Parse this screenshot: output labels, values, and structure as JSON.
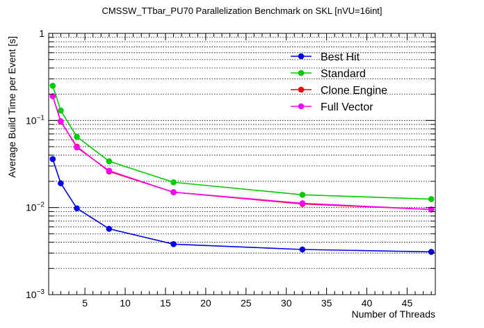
{
  "chart_data": {
    "type": "line",
    "title": "CMSSW_TTbar_PU70 Parallelization Benchmark on SKL [nVU=16int]",
    "xlabel": "Number of Threads",
    "ylabel": "Average Build Time per Event [s]",
    "xlim": [
      0.5,
      48.5
    ],
    "ylim": [
      0.001,
      1
    ],
    "yscale": "log",
    "grid": true,
    "legend_position": "top-right",
    "x_ticks": [
      5,
      10,
      15,
      20,
      25,
      30,
      35,
      40,
      45
    ],
    "x_tick_labels": [
      "5",
      "10",
      "15",
      "20",
      "25",
      "30",
      "35",
      "40",
      "45"
    ],
    "y_ticks": [
      0.001,
      0.01,
      0.1,
      1
    ],
    "y_tick_labels": [
      {
        "base": "10",
        "exp": "−3"
      },
      {
        "base": "10",
        "exp": "−2"
      },
      {
        "base": "10",
        "exp": "−1"
      },
      {
        "base": "1",
        "exp": ""
      }
    ],
    "x": [
      1,
      2,
      4,
      8,
      16,
      32,
      48
    ],
    "series": [
      {
        "name": "Best Hit",
        "color": "#0000ee",
        "values": [
          0.036,
          0.019,
          0.0098,
          0.0057,
          0.0038,
          0.0033,
          0.0031
        ]
      },
      {
        "name": "Standard",
        "color": "#00cc00",
        "values": [
          0.25,
          0.13,
          0.065,
          0.034,
          0.0195,
          0.014,
          0.0125
        ]
      },
      {
        "name": "Clone Engine",
        "color": "#ff0000",
        "values": [
          0.19,
          0.097,
          0.05,
          0.026,
          0.015,
          0.011,
          0.0095
        ]
      },
      {
        "name": "Full Vector",
        "color": "#ff00ff",
        "values": [
          0.19,
          0.098,
          0.049,
          0.0265,
          0.015,
          0.0112,
          0.0095
        ]
      }
    ]
  }
}
